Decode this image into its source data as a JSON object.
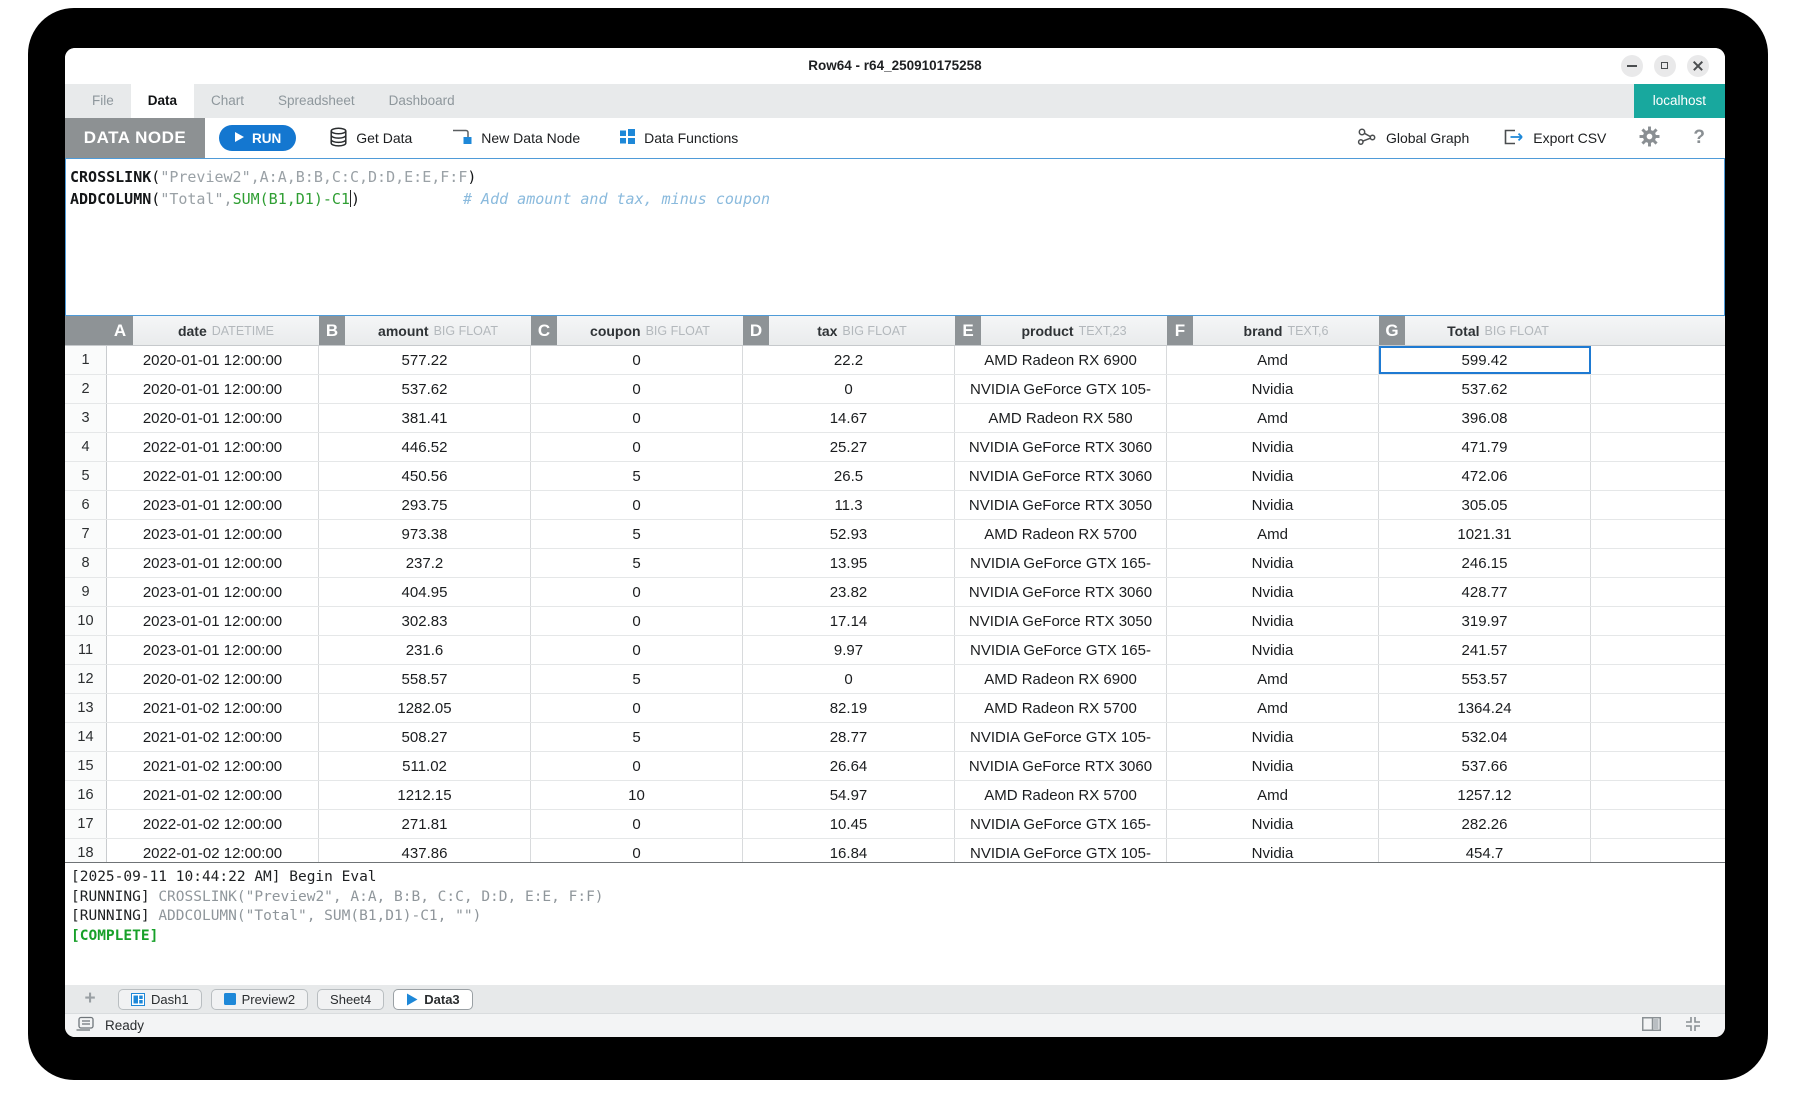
{
  "colors": {
    "accent_blue": "#1e88d8",
    "run_button_blue": "#1477d0",
    "localhost_teal": "#18a89e",
    "formula_green": "#2f9e33",
    "comment_blue": "#8abadd",
    "complete_green": "#17a029",
    "selection_blue": "#1e7ad2",
    "header_badge_gray": "#8e9396"
  },
  "window": {
    "title": "Row64 - r64_250910175258"
  },
  "menu": {
    "items": [
      {
        "label": "File",
        "active": false
      },
      {
        "label": "Data",
        "active": true
      },
      {
        "label": "Chart",
        "active": false
      },
      {
        "label": "Spreadsheet",
        "active": false
      },
      {
        "label": "Dashboard",
        "active": false
      }
    ],
    "badge": "localhost"
  },
  "toolbar": {
    "mode_label": "DATA NODE",
    "run_label": "RUN",
    "get_data_label": "Get Data",
    "new_data_node_label": "New Data Node",
    "data_functions_label": "Data Functions",
    "global_graph_label": "Global Graph",
    "export_csv_label": "Export CSV",
    "help_label": "?"
  },
  "editor": {
    "lines": [
      [
        {
          "text": "CROSSLINK",
          "style": "fn"
        },
        {
          "text": "(",
          "style": "pl"
        },
        {
          "text": "\"Preview2\",A:A,B:B,C:C,D:D,E:E,F:F",
          "style": "arg"
        },
        {
          "text": ")",
          "style": "pl"
        }
      ],
      [
        {
          "text": "ADDCOLUMN",
          "style": "fn"
        },
        {
          "text": "(",
          "style": "pl"
        },
        {
          "text": "\"Total\",",
          "style": "arg"
        },
        {
          "text": "SUM(B1,D1)-C1",
          "style": "green"
        },
        {
          "text": "",
          "style": "cursor"
        },
        {
          "text": ")",
          "style": "pl"
        },
        {
          "text": "# Add amount and tax, minus coupon",
          "style": "comment"
        }
      ]
    ]
  },
  "table": {
    "columns": [
      {
        "letter": "A",
        "name": "date",
        "type": "DATETIME"
      },
      {
        "letter": "B",
        "name": "amount",
        "type": "BIG FLOAT"
      },
      {
        "letter": "C",
        "name": "coupon",
        "type": "BIG FLOAT"
      },
      {
        "letter": "D",
        "name": "tax",
        "type": "BIG FLOAT"
      },
      {
        "letter": "E",
        "name": "product",
        "type": "TEXT,23"
      },
      {
        "letter": "F",
        "name": "brand",
        "type": "TEXT,6"
      },
      {
        "letter": "G",
        "name": "Total",
        "type": "BIG FLOAT"
      }
    ],
    "selected_cell": {
      "row": 1,
      "column": "G"
    },
    "rows": [
      [
        "2020-01-01 12:00:00",
        "577.22",
        "0",
        "22.2",
        "AMD Radeon RX 6900",
        "Amd",
        "599.42"
      ],
      [
        "2020-01-01 12:00:00",
        "537.62",
        "0",
        "0",
        "NVIDIA GeForce GTX 105-",
        "Nvidia",
        "537.62"
      ],
      [
        "2020-01-01 12:00:00",
        "381.41",
        "0",
        "14.67",
        "AMD Radeon RX 580",
        "Amd",
        "396.08"
      ],
      [
        "2022-01-01 12:00:00",
        "446.52",
        "0",
        "25.27",
        "NVIDIA GeForce RTX 3060",
        "Nvidia",
        "471.79"
      ],
      [
        "2022-01-01 12:00:00",
        "450.56",
        "5",
        "26.5",
        "NVIDIA GeForce RTX 3060",
        "Nvidia",
        "472.06"
      ],
      [
        "2023-01-01 12:00:00",
        "293.75",
        "0",
        "11.3",
        "NVIDIA GeForce RTX 3050",
        "Nvidia",
        "305.05"
      ],
      [
        "2023-01-01 12:00:00",
        "973.38",
        "5",
        "52.93",
        "AMD Radeon RX 5700",
        "Amd",
        "1021.31"
      ],
      [
        "2023-01-01 12:00:00",
        "237.2",
        "5",
        "13.95",
        "NVIDIA GeForce GTX 165-",
        "Nvidia",
        "246.15"
      ],
      [
        "2023-01-01 12:00:00",
        "404.95",
        "0",
        "23.82",
        "NVIDIA GeForce RTX 3060",
        "Nvidia",
        "428.77"
      ],
      [
        "2023-01-01 12:00:00",
        "302.83",
        "0",
        "17.14",
        "NVIDIA GeForce RTX 3050",
        "Nvidia",
        "319.97"
      ],
      [
        "2023-01-01 12:00:00",
        "231.6",
        "0",
        "9.97",
        "NVIDIA GeForce GTX 165-",
        "Nvidia",
        "241.57"
      ],
      [
        "2020-01-02 12:00:00",
        "558.57",
        "5",
        "0",
        "AMD Radeon RX 6900",
        "Amd",
        "553.57"
      ],
      [
        "2021-01-02 12:00:00",
        "1282.05",
        "0",
        "82.19",
        "AMD Radeon RX 5700",
        "Amd",
        "1364.24"
      ],
      [
        "2021-01-02 12:00:00",
        "508.27",
        "5",
        "28.77",
        "NVIDIA GeForce GTX 105-",
        "Nvidia",
        "532.04"
      ],
      [
        "2021-01-02 12:00:00",
        "511.02",
        "0",
        "26.64",
        "NVIDIA GeForce RTX 3060",
        "Nvidia",
        "537.66"
      ],
      [
        "2021-01-02 12:00:00",
        "1212.15",
        "10",
        "54.97",
        "AMD Radeon RX 5700",
        "Amd",
        "1257.12"
      ],
      [
        "2022-01-02 12:00:00",
        "271.81",
        "0",
        "10.45",
        "NVIDIA GeForce GTX 165-",
        "Nvidia",
        "282.26"
      ],
      [
        "2022-01-02 12:00:00",
        "437.86",
        "0",
        "16.84",
        "NVIDIA GeForce GTX 105-",
        "Nvidia",
        "454.7"
      ]
    ]
  },
  "log": {
    "lines": [
      [
        {
          "text": "[2025-09-11 10:44:22 AM] Begin Eval",
          "style": "dark"
        }
      ],
      [
        {
          "text": "[RUNNING] ",
          "style": "dark"
        },
        {
          "text": "CROSSLINK(\"Preview2\", A:A, B:B, C:C, D:D, E:E, F:F)",
          "style": "gray"
        }
      ],
      [
        {
          "text": "[RUNNING] ",
          "style": "dark"
        },
        {
          "text": "ADDCOLUMN(\"Total\", SUM(B1,D1)-C1, \"\")",
          "style": "gray"
        }
      ],
      [
        {
          "text": "[COMPLETE]",
          "style": "green"
        }
      ]
    ]
  },
  "tabs": {
    "add_label": "+",
    "items": [
      {
        "label": "Dash1",
        "icon": "dashboard-icon",
        "active": false
      },
      {
        "label": "Preview2",
        "icon": "sheet-icon",
        "active": false
      },
      {
        "label": "Sheet4",
        "icon": null,
        "active": false
      },
      {
        "label": "Data3",
        "icon": "data-node-icon",
        "active": true
      }
    ]
  },
  "status": {
    "ready_label": "Ready"
  }
}
